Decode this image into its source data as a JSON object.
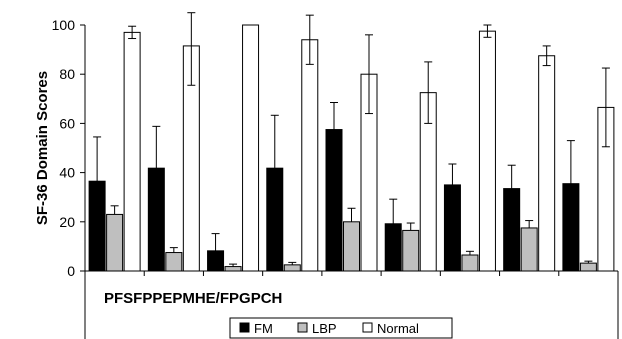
{
  "chart_data": {
    "type": "bar",
    "ylabel": "SF-36 Domain Scores",
    "xlabel": "",
    "title": "",
    "category_text": "PFSFPPEPMHE/FPGPCH",
    "categories": [
      "PF",
      "SF",
      "PP",
      "EP",
      "MH",
      "E/F",
      "PG",
      "P",
      "CH"
    ],
    "ylim": [
      0,
      100
    ],
    "yticks": [
      0,
      20,
      40,
      60,
      80,
      100
    ],
    "grid": false,
    "legend_position": "bottom-center",
    "series": [
      {
        "name": "FM",
        "color": "#000000",
        "values": [
          36.5,
          41.8,
          8.2,
          41.8,
          57.5,
          19.2,
          35.0,
          33.5,
          35.5
        ],
        "errors": [
          18.0,
          17.0,
          7.0,
          21.5,
          11.0,
          10.0,
          8.5,
          9.5,
          17.5
        ]
      },
      {
        "name": "LBP",
        "color": "#bfbfbf",
        "values": [
          23.0,
          7.5,
          1.8,
          2.5,
          20.0,
          16.5,
          6.5,
          17.5,
          3.2
        ],
        "errors": [
          3.5,
          2.0,
          1.0,
          1.0,
          5.5,
          3.0,
          1.5,
          3.0,
          0.8
        ]
      },
      {
        "name": "Normal",
        "color": "#ffffff",
        "values": [
          97.0,
          91.5,
          100.0,
          94.0,
          80.0,
          72.5,
          97.5,
          87.5,
          66.5
        ],
        "errors": [
          2.5,
          16.0,
          0.0,
          10.0,
          16.0,
          12.5,
          2.5,
          4.0,
          16.0
        ]
      }
    ]
  }
}
